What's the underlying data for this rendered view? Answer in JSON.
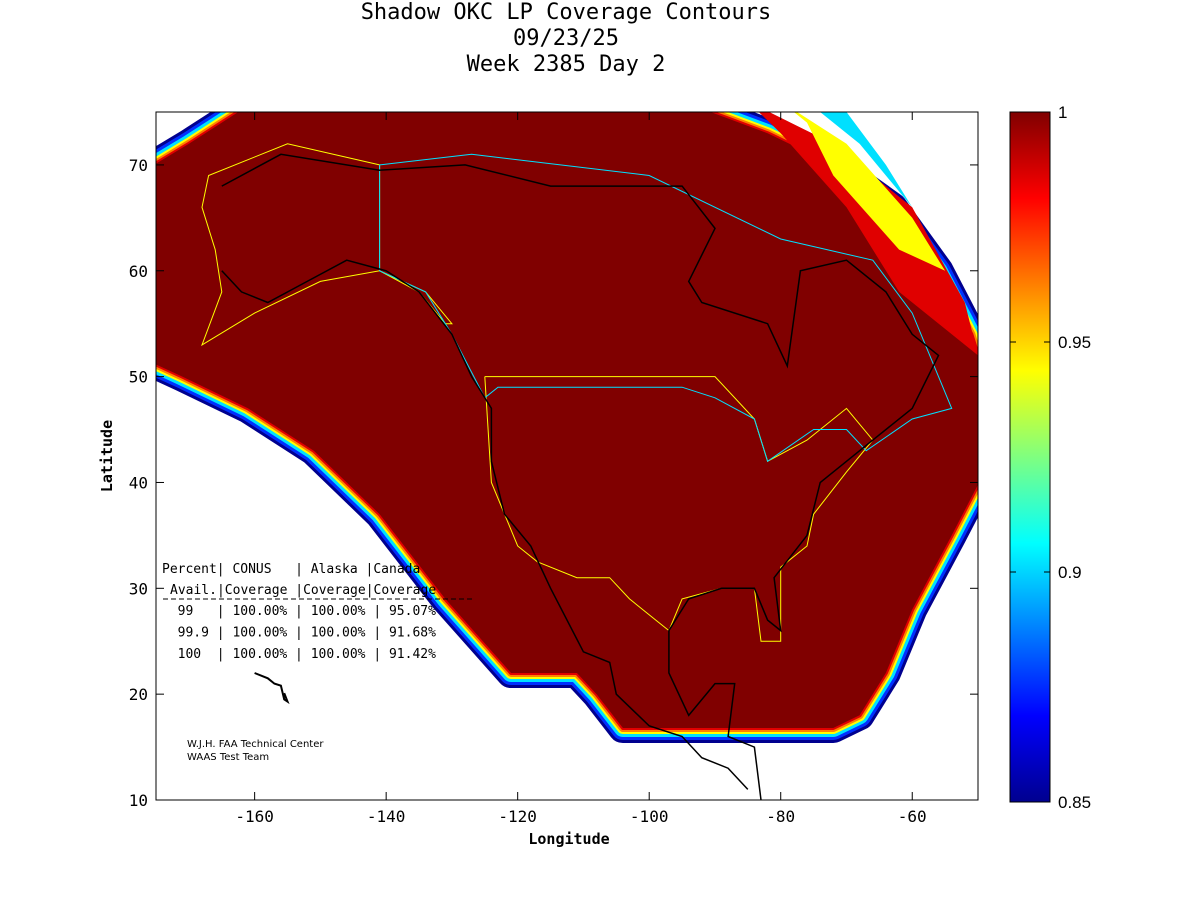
{
  "chart_data": {
    "type": "heatmap",
    "title": [
      "Shadow OKC LP Coverage Contours",
      "09/23/25",
      "Week 2385 Day 2"
    ],
    "xlabel": "Longitude",
    "ylabel": "Latitude",
    "xlim": [
      -175,
      -50
    ],
    "ylim": [
      10,
      75
    ],
    "xticks": [
      -160,
      -140,
      -120,
      -100,
      -80,
      -60
    ],
    "yticks": [
      10,
      20,
      30,
      40,
      50,
      60,
      70
    ],
    "colorbar": {
      "min": 0.85,
      "max": 1,
      "ticks": [
        "0.85",
        "0.9",
        "0.95",
        "1"
      ],
      "colormap": "jet"
    },
    "table": {
      "header1": [
        "Percent",
        "CONUS",
        "Alaska",
        "Canada"
      ],
      "header2": [
        "Avail.",
        "Coverage",
        "Coverage",
        "Coverage"
      ],
      "rows": [
        {
          "avail": "99",
          "conus": "100.00%",
          "alaska": "100.00%",
          "canada": "95.07%"
        },
        {
          "avail": "99.9",
          "conus": "100.00%",
          "alaska": "100.00%",
          "canada": "91.68%"
        },
        {
          "avail": "100",
          "conus": "100.00%",
          "alaska": "100.00%",
          "canada": "91.42%"
        }
      ]
    },
    "credit": [
      "W.J.H. FAA Technical Center",
      "WAAS Test Team"
    ]
  },
  "colors": {
    "full": "#800000",
    "red": "#e00000",
    "orange": "#ff8000",
    "yellow": "#ffff00",
    "cyan": "#00e0ff",
    "blue": "#0030ff",
    "navy": "#00008f"
  }
}
